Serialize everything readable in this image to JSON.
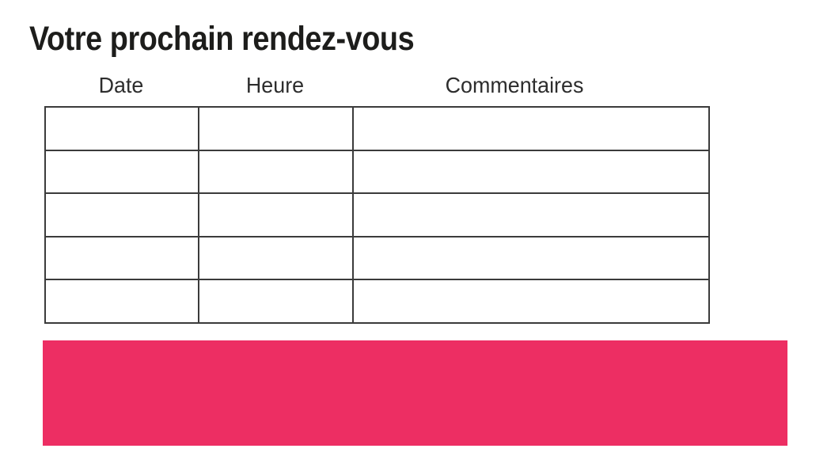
{
  "page": {
    "title": "Votre prochain rendez-vous"
  },
  "table": {
    "headers": [
      "Date",
      "Heure",
      "Commentaires"
    ],
    "row_count": 5,
    "rows": [
      [
        "",
        "",
        ""
      ],
      [
        "",
        "",
        ""
      ],
      [
        "",
        "",
        ""
      ],
      [
        "",
        "",
        ""
      ],
      [
        "",
        "",
        ""
      ]
    ]
  },
  "colors": {
    "accent_pink": "#ED2E63",
    "title_text": "#1D1D1B",
    "header_text": "#2D2D2D",
    "table_border": "#3B3B3B"
  }
}
